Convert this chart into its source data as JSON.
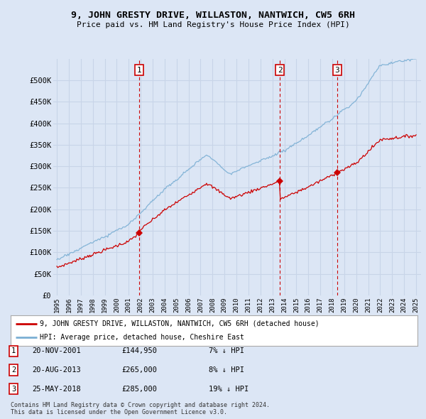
{
  "title": "9, JOHN GRESTY DRIVE, WILLASTON, NANTWICH, CW5 6RH",
  "subtitle": "Price paid vs. HM Land Registry's House Price Index (HPI)",
  "background_color": "#dce6f5",
  "plot_bg_color": "#dce6f5",
  "grid_color": "#c8d4e8",
  "sale_color": "#cc0000",
  "hpi_color": "#7bafd4",
  "vline_color": "#cc0000",
  "ylim": [
    0,
    550000
  ],
  "yticks": [
    0,
    50000,
    100000,
    150000,
    200000,
    250000,
    300000,
    350000,
    400000,
    450000,
    500000
  ],
  "sales": [
    {
      "date_num": 2001.89,
      "price": 144950,
      "label": "1"
    },
    {
      "date_num": 2013.63,
      "price": 265000,
      "label": "2"
    },
    {
      "date_num": 2018.4,
      "price": 285000,
      "label": "3"
    }
  ],
  "sale_labels": [
    {
      "num": "1",
      "date": "20-NOV-2001",
      "price": "£144,950",
      "pct": "7%",
      "dir": "↓"
    },
    {
      "num": "2",
      "date": "20-AUG-2013",
      "price": "£265,000",
      "pct": "8%",
      "dir": "↓"
    },
    {
      "num": "3",
      "date": "25-MAY-2018",
      "price": "£285,000",
      "pct": "19%",
      "dir": "↓"
    }
  ],
  "legend_line1": "9, JOHN GRESTY DRIVE, WILLASTON, NANTWICH, CW5 6RH (detached house)",
  "legend_line2": "HPI: Average price, detached house, Cheshire East",
  "footnote1": "Contains HM Land Registry data © Crown copyright and database right 2024.",
  "footnote2": "This data is licensed under the Open Government Licence v3.0."
}
